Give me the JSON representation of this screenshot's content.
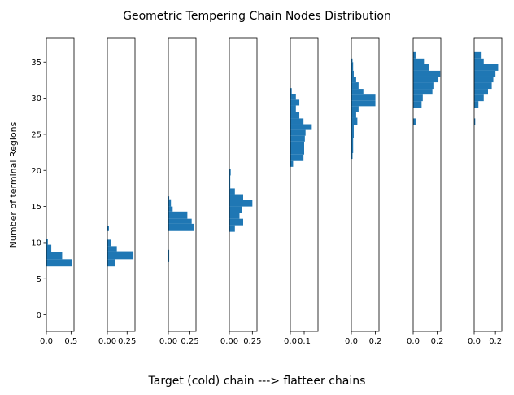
{
  "chart_data": {
    "type": "bar",
    "orientation": "horizontal",
    "title": "Geometric Tempering Chain Nodes Distribution",
    "xlabel": "Target (cold) chain ---> flatteer chains",
    "ylabel": "Number of terminal Regions",
    "ylim": [
      -2.3,
      38.3
    ],
    "yticks": [
      0,
      5,
      10,
      15,
      20,
      25,
      30,
      35
    ],
    "bar_color": "#1f77b4",
    "panels": [
      {
        "xlim": [
          0,
          0.56
        ],
        "xticks": [
          {
            "v": 0,
            "label": "0.0"
          },
          {
            "v": 0.5,
            "label": "0.5"
          }
        ],
        "bins": [
          {
            "y0": 6.7,
            "y1": 7.7,
            "v": 0.52
          },
          {
            "y0": 7.7,
            "y1": 8.7,
            "v": 0.32
          },
          {
            "y0": 8.7,
            "y1": 9.7,
            "v": 0.1
          },
          {
            "y0": 9.7,
            "y1": 10.5,
            "v": 0.03
          }
        ]
      },
      {
        "xlim": [
          0,
          0.35
        ],
        "xticks": [
          {
            "v": 0,
            "label": "0.00"
          },
          {
            "v": 0.25,
            "label": "0.25"
          }
        ],
        "bins": [
          {
            "y0": 6.7,
            "y1": 7.7,
            "v": 0.1
          },
          {
            "y0": 7.7,
            "y1": 8.8,
            "v": 0.33
          },
          {
            "y0": 8.8,
            "y1": 9.5,
            "v": 0.12
          },
          {
            "y0": 9.5,
            "y1": 10.4,
            "v": 0.05
          },
          {
            "y0": 11.6,
            "y1": 12.3,
            "v": 0.02
          }
        ]
      },
      {
        "xlim": [
          0,
          0.32
        ],
        "xticks": [
          {
            "v": 0,
            "label": "0.00"
          },
          {
            "v": 0.25,
            "label": "0.25"
          }
        ],
        "bins": [
          {
            "y0": 7.3,
            "y1": 9.0,
            "v": 0.01
          },
          {
            "y0": 11.6,
            "y1": 12.6,
            "v": 0.3
          },
          {
            "y0": 12.6,
            "y1": 13.3,
            "v": 0.27
          },
          {
            "y0": 13.3,
            "y1": 14.3,
            "v": 0.22
          },
          {
            "y0": 14.3,
            "y1": 15.0,
            "v": 0.05
          },
          {
            "y0": 15.0,
            "y1": 16.0,
            "v": 0.03
          },
          {
            "y0": 16.0,
            "y1": 16.4,
            "v": 0.01
          }
        ]
      },
      {
        "xlim": [
          0,
          0.3
        ],
        "xticks": [
          {
            "v": 0,
            "label": "0.00"
          },
          {
            "v": 0.25,
            "label": "0.25"
          }
        ],
        "bins": [
          {
            "y0": 11.5,
            "y1": 12.4,
            "v": 0.06
          },
          {
            "y0": 12.4,
            "y1": 13.3,
            "v": 0.15
          },
          {
            "y0": 13.3,
            "y1": 14.1,
            "v": 0.11
          },
          {
            "y0": 14.1,
            "y1": 15.0,
            "v": 0.14
          },
          {
            "y0": 15.0,
            "y1": 15.9,
            "v": 0.25
          },
          {
            "y0": 15.9,
            "y1": 16.7,
            "v": 0.15
          },
          {
            "y0": 16.7,
            "y1": 17.5,
            "v": 0.06
          },
          {
            "y0": 17.5,
            "y1": 19.3,
            "v": 0.01
          },
          {
            "y0": 19.3,
            "y1": 20.2,
            "v": 0.015
          }
        ]
      },
      {
        "xlim": [
          0,
          0.2
        ],
        "xticks": [
          {
            "v": 0,
            "label": "0.0"
          },
          {
            "v": 0.1,
            "label": "0.1"
          }
        ],
        "bins": [
          {
            "y0": 20.5,
            "y1": 21.3,
            "v": 0.02
          },
          {
            "y0": 21.3,
            "y1": 22.2,
            "v": 0.095
          },
          {
            "y0": 22.2,
            "y1": 24.0,
            "v": 0.1
          },
          {
            "y0": 24.0,
            "y1": 24.8,
            "v": 0.105
          },
          {
            "y0": 24.8,
            "y1": 25.6,
            "v": 0.11
          },
          {
            "y0": 25.6,
            "y1": 26.4,
            "v": 0.155
          },
          {
            "y0": 26.4,
            "y1": 27.2,
            "v": 0.095
          },
          {
            "y0": 27.2,
            "y1": 28.1,
            "v": 0.065
          },
          {
            "y0": 28.1,
            "y1": 29.0,
            "v": 0.04
          },
          {
            "y0": 29.0,
            "y1": 29.8,
            "v": 0.065
          },
          {
            "y0": 29.8,
            "y1": 30.6,
            "v": 0.04
          },
          {
            "y0": 30.6,
            "y1": 31.4,
            "v": 0.01
          }
        ]
      },
      {
        "xlim": [
          0,
          0.23
        ],
        "xticks": [
          {
            "v": 0,
            "label": "0.0"
          },
          {
            "v": 0.2,
            "label": "0.2"
          }
        ],
        "bins": [
          {
            "y0": 21.6,
            "y1": 22.4,
            "v": 0.01
          },
          {
            "y0": 22.4,
            "y1": 24.5,
            "v": 0.015
          },
          {
            "y0": 24.5,
            "y1": 26.3,
            "v": 0.02
          },
          {
            "y0": 26.3,
            "y1": 27.3,
            "v": 0.05
          },
          {
            "y0": 27.3,
            "y1": 28.1,
            "v": 0.04
          },
          {
            "y0": 28.1,
            "y1": 28.9,
            "v": 0.06
          },
          {
            "y0": 28.9,
            "y1": 29.7,
            "v": 0.2
          },
          {
            "y0": 29.7,
            "y1": 30.5,
            "v": 0.2
          },
          {
            "y0": 30.5,
            "y1": 31.3,
            "v": 0.1
          },
          {
            "y0": 31.3,
            "y1": 32.2,
            "v": 0.06
          },
          {
            "y0": 32.2,
            "y1": 33.0,
            "v": 0.04
          },
          {
            "y0": 33.0,
            "y1": 33.8,
            "v": 0.02
          },
          {
            "y0": 33.8,
            "y1": 35.0,
            "v": 0.015
          },
          {
            "y0": 35.0,
            "y1": 35.5,
            "v": 0.01
          }
        ]
      },
      {
        "xlim": [
          0,
          0.23
        ],
        "xticks": [
          {
            "v": 0,
            "label": "0.0"
          },
          {
            "v": 0.2,
            "label": "0.2"
          }
        ],
        "bins": [
          {
            "y0": 26.3,
            "y1": 27.2,
            "v": 0.02
          },
          {
            "y0": 28.7,
            "y1": 29.6,
            "v": 0.07
          },
          {
            "y0": 29.6,
            "y1": 30.5,
            "v": 0.08
          },
          {
            "y0": 30.5,
            "y1": 31.3,
            "v": 0.16
          },
          {
            "y0": 31.3,
            "y1": 32.2,
            "v": 0.175
          },
          {
            "y0": 32.2,
            "y1": 33.0,
            "v": 0.21
          },
          {
            "y0": 33.0,
            "y1": 33.8,
            "v": 0.225
          },
          {
            "y0": 33.8,
            "y1": 34.7,
            "v": 0.13
          },
          {
            "y0": 34.7,
            "y1": 35.5,
            "v": 0.09
          },
          {
            "y0": 35.5,
            "y1": 36.4,
            "v": 0.02
          }
        ]
      },
      {
        "xlim": [
          0,
          0.26
        ],
        "xticks": [
          {
            "v": 0,
            "label": "0.0"
          },
          {
            "v": 0.2,
            "label": "0.2"
          }
        ],
        "bins": [
          {
            "y0": 26.3,
            "y1": 27.2,
            "v": 0.01
          },
          {
            "y0": 28.7,
            "y1": 29.6,
            "v": 0.04
          },
          {
            "y0": 29.6,
            "y1": 30.5,
            "v": 0.09
          },
          {
            "y0": 30.5,
            "y1": 31.3,
            "v": 0.13
          },
          {
            "y0": 31.3,
            "y1": 32.2,
            "v": 0.165
          },
          {
            "y0": 32.2,
            "y1": 33.0,
            "v": 0.18
          },
          {
            "y0": 33.0,
            "y1": 33.8,
            "v": 0.2
          },
          {
            "y0": 33.8,
            "y1": 34.7,
            "v": 0.225
          },
          {
            "y0": 34.7,
            "y1": 35.5,
            "v": 0.09
          },
          {
            "y0": 35.5,
            "y1": 36.4,
            "v": 0.07
          }
        ]
      }
    ]
  }
}
